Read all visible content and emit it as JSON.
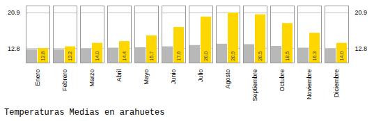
{
  "chart_data": {
    "type": "bar",
    "title": "Temperaturas Medias en arahuetes",
    "categories": [
      "Enero",
      "Febrero",
      "Marzo",
      "Abril",
      "Mayo",
      "Junio",
      "Julio",
      "Agosto",
      "Septiembre",
      "Octubre",
      "Noviembre",
      "Diciembre"
    ],
    "series": [
      {
        "color": "#B8B8B8",
        "values": [
          12.5,
          12.5,
          12.7,
          12.9,
          13.0,
          13.2,
          13.5,
          13.8,
          13.7,
          13.3,
          12.9,
          12.7
        ]
      },
      {
        "color": "#FFD700",
        "values": [
          12.8,
          13.2,
          14.0,
          14.4,
          15.7,
          17.6,
          20.0,
          20.9,
          20.5,
          18.5,
          16.3,
          14.0
        ],
        "data_labels": true,
        "value_labels": [
          "12.8",
          "13.2",
          "14.0",
          "14.4",
          "15.7",
          "17.6",
          "20.0",
          "20.9",
          "20.5",
          "18.5",
          "16.3",
          "14.0"
        ]
      }
    ],
    "ylim": [
      9.5,
      22.5
    ],
    "yticks": [
      12.8,
      20.9
    ],
    "grid": true
  }
}
